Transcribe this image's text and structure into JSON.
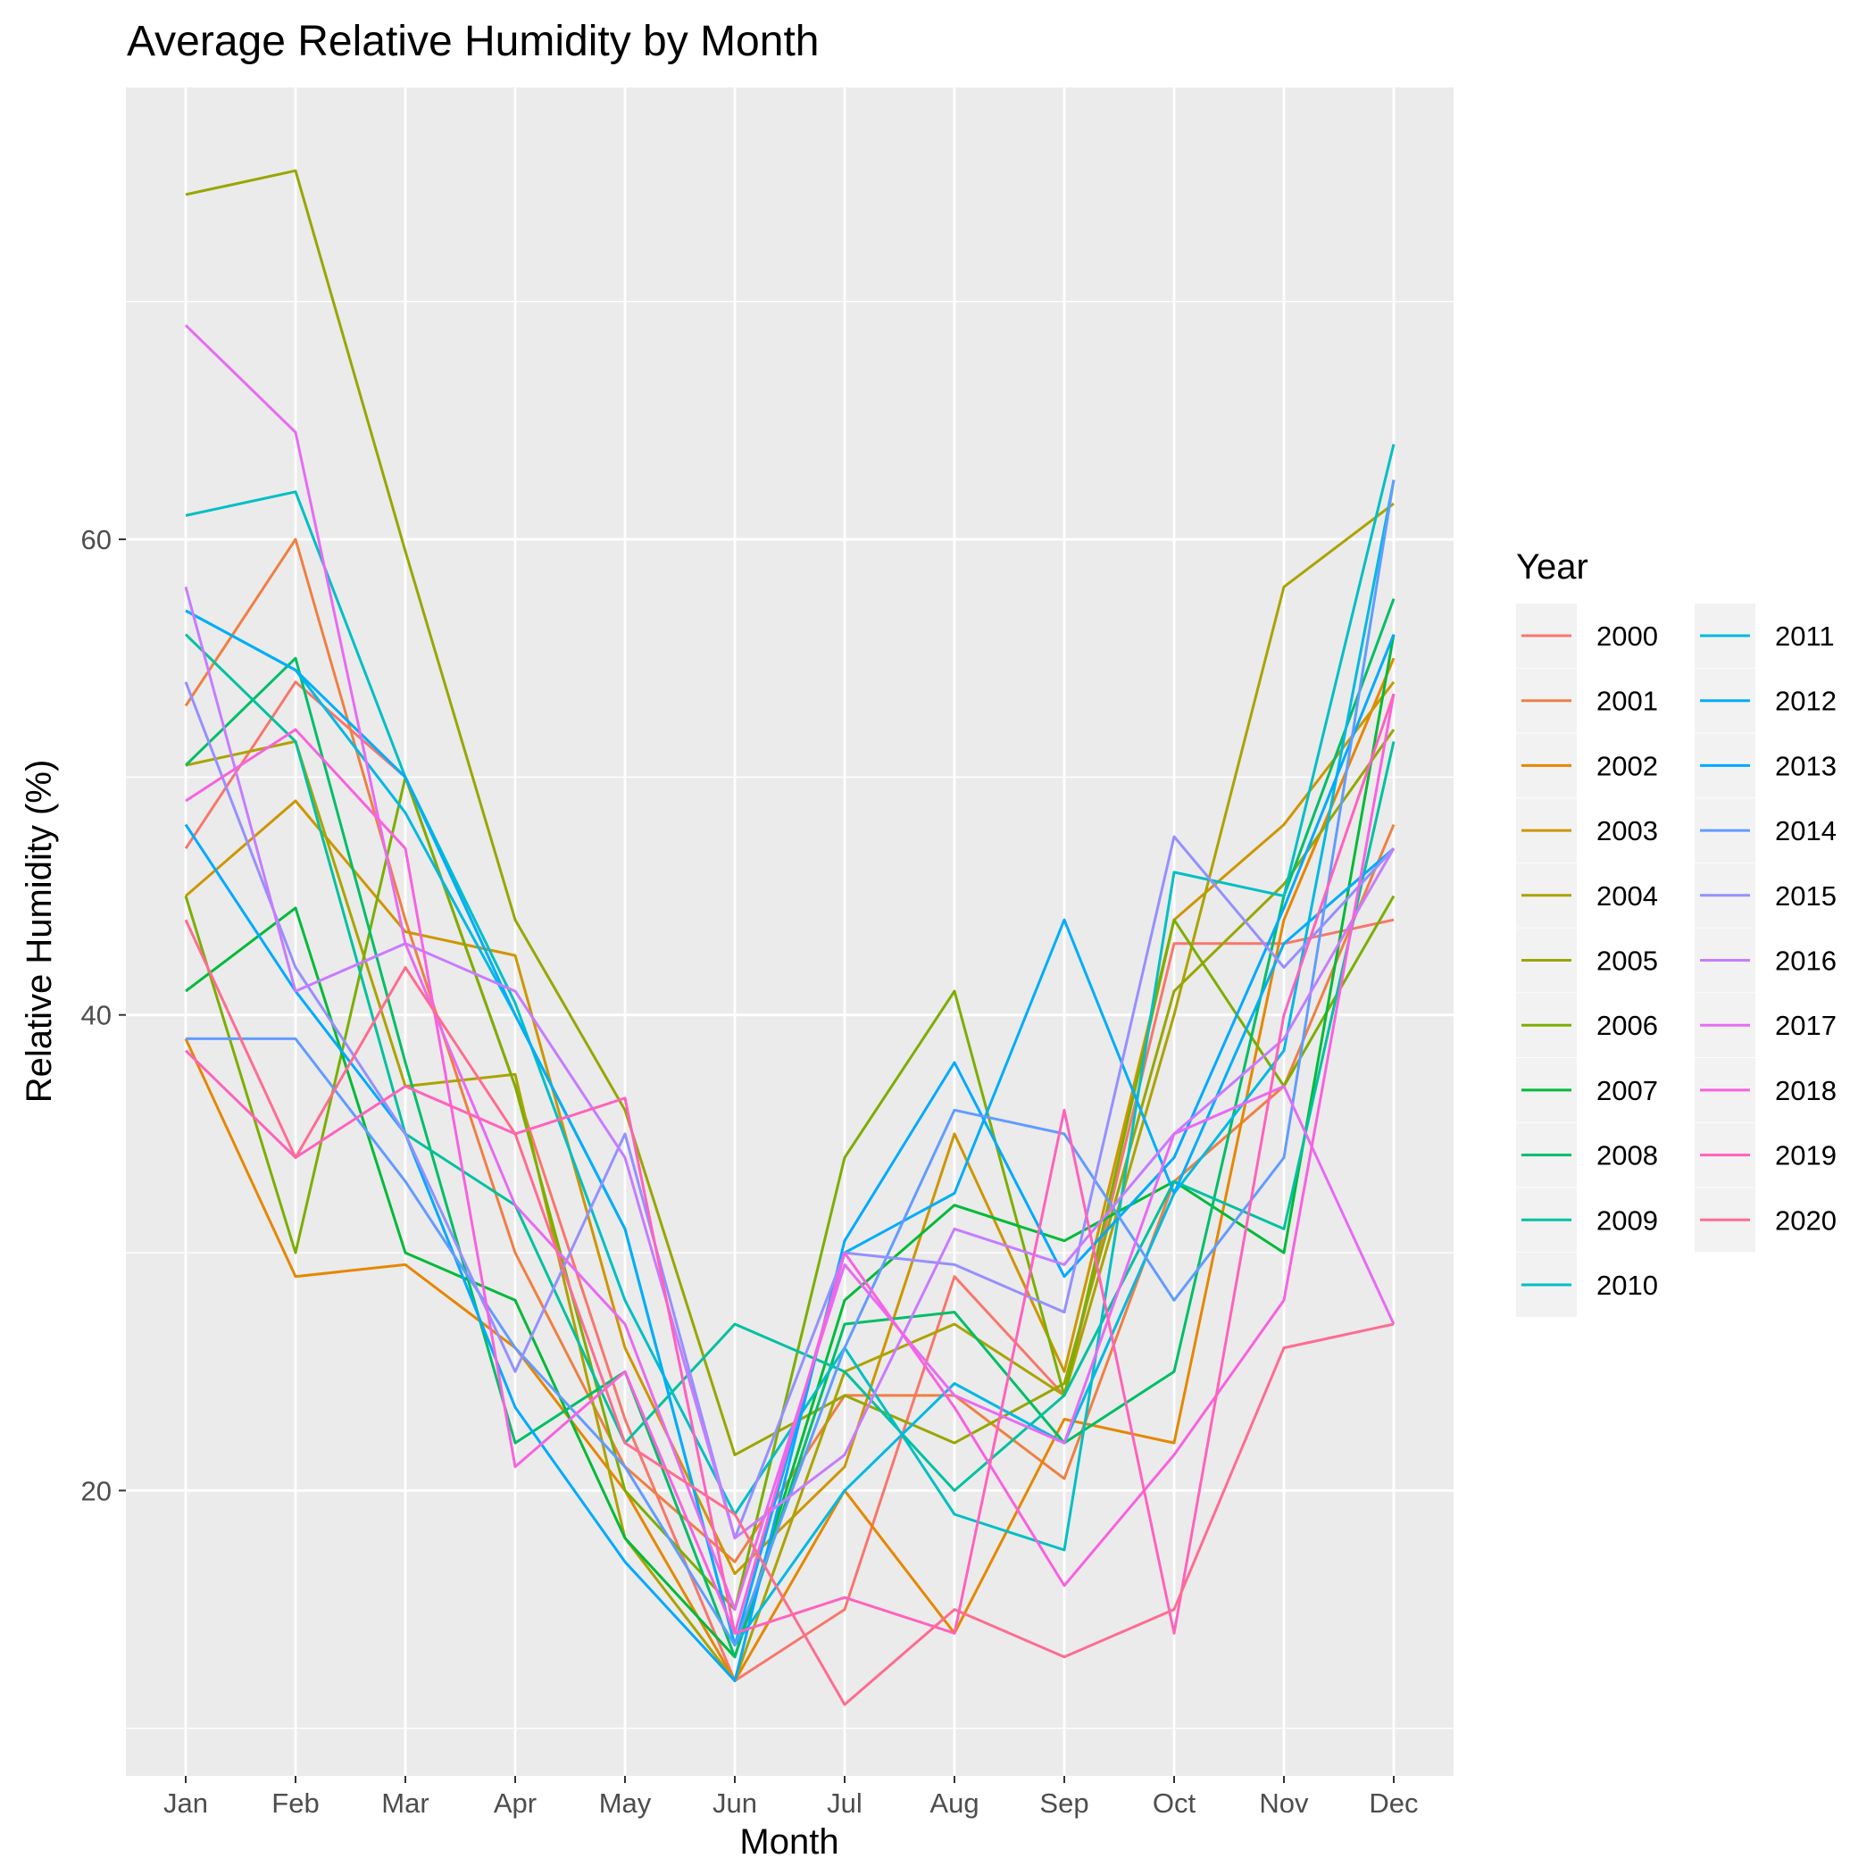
{
  "chart_data": {
    "type": "line",
    "title": "Average Relative Humidity by Month",
    "xlabel": "Month",
    "ylabel": "Relative Humidity (%)",
    "categories": [
      "Jan",
      "Feb",
      "Mar",
      "Apr",
      "May",
      "Jun",
      "Jul",
      "Aug",
      "Sep",
      "Oct",
      "Nov",
      "Dec"
    ],
    "ylim": [
      8,
      79
    ],
    "yticks": [
      20,
      40,
      60
    ],
    "grid": true,
    "legend": {
      "title": "Year",
      "position": "right",
      "columns": 2
    },
    "series": [
      {
        "name": "2000",
        "color": "#F8766D",
        "values": [
          47,
          54,
          50,
          37,
          23,
          12,
          15,
          29,
          24,
          43,
          43,
          44
        ]
      },
      {
        "name": "2001",
        "color": "#EE8043",
        "values": [
          53,
          60,
          44,
          30,
          21,
          17,
          24,
          24,
          20.5,
          33,
          37,
          48
        ]
      },
      {
        "name": "2002",
        "color": "#E58700",
        "values": [
          39,
          29,
          29.5,
          26,
          20,
          12,
          20,
          14,
          23,
          22,
          44,
          55
        ]
      },
      {
        "name": "2003",
        "color": "#CD9600",
        "values": [
          45,
          49,
          43.5,
          42.5,
          26,
          16.5,
          21,
          35,
          25,
          44,
          48,
          54
        ]
      },
      {
        "name": "2004",
        "color": "#ABA300",
        "values": [
          50.5,
          51.5,
          37,
          37.5,
          18,
          12,
          25,
          27,
          24,
          40,
          58,
          61.5
        ]
      },
      {
        "name": "2005",
        "color": "#98A600",
        "values": [
          74.5,
          75.5,
          59.5,
          44,
          36,
          21.5,
          24,
          22,
          24.5,
          41,
          45.5,
          52
        ]
      },
      {
        "name": "2006",
        "color": "#7CAE00",
        "values": [
          45,
          30,
          50,
          37,
          20,
          15,
          34,
          41,
          24,
          44,
          37,
          45
        ]
      },
      {
        "name": "2007",
        "color": "#00BA38",
        "values": [
          41,
          44.5,
          30,
          28,
          18,
          13,
          28,
          32,
          30.5,
          33,
          30,
          56
        ]
      },
      {
        "name": "2008",
        "color": "#00BE67",
        "values": [
          50.5,
          55,
          38,
          22,
          25,
          13,
          27,
          27.5,
          22,
          25,
          45,
          57.5
        ]
      },
      {
        "name": "2009",
        "color": "#00C19F",
        "values": [
          56,
          51.5,
          35,
          32,
          22,
          27,
          25,
          20,
          24,
          33,
          31,
          51.5
        ]
      },
      {
        "name": "2010",
        "color": "#00BFC4",
        "values": [
          61,
          62,
          50,
          40.5,
          28,
          19,
          26,
          19,
          17.5,
          46,
          45,
          64
        ]
      },
      {
        "name": "2011",
        "color": "#00B9E3",
        "values": [
          57,
          54.5,
          48.5,
          40,
          31,
          13.5,
          20,
          24.5,
          22,
          32.5,
          38.5,
          62.5
        ]
      },
      {
        "name": "2012",
        "color": "#00ADFA",
        "values": [
          57,
          54.5,
          50,
          40,
          31,
          13.5,
          30,
          32.5,
          44,
          32.5,
          43,
          47
        ]
      },
      {
        "name": "2013",
        "color": "#00A9FF",
        "values": [
          48,
          41,
          35,
          23.5,
          17,
          12,
          30.5,
          38,
          29,
          34,
          44.5,
          56
        ]
      },
      {
        "name": "2014",
        "color": "#619CFF",
        "values": [
          39,
          39,
          33,
          26,
          21,
          13.5,
          26,
          36,
          35,
          28,
          34,
          62.5
        ]
      },
      {
        "name": "2015",
        "color": "#9590FF",
        "values": [
          54,
          42,
          35,
          25,
          35,
          18,
          30,
          29.5,
          27.5,
          47.5,
          42,
          47
        ]
      },
      {
        "name": "2016",
        "color": "#C77CFF",
        "values": [
          58,
          41,
          43,
          41,
          34,
          18,
          21.5,
          31,
          29.5,
          35,
          39,
          47
        ]
      },
      {
        "name": "2017",
        "color": "#E76BF3",
        "values": [
          69,
          64.5,
          43,
          32,
          27,
          15,
          29.5,
          24,
          22,
          35,
          37,
          27
        ]
      },
      {
        "name": "2018",
        "color": "#F862DF",
        "values": [
          49,
          52,
          47,
          21,
          25,
          14,
          30,
          23.5,
          16,
          21.5,
          28,
          53.5
        ]
      },
      {
        "name": "2019",
        "color": "#FF62BC",
        "values": [
          38.5,
          34,
          37,
          35,
          36.5,
          14,
          15.5,
          14,
          36,
          14,
          40,
          53.5
        ]
      },
      {
        "name": "2020",
        "color": "#FF6C91",
        "values": [
          44,
          34,
          42,
          35,
          22,
          19,
          11,
          15,
          13,
          15,
          26,
          27
        ]
      }
    ]
  }
}
